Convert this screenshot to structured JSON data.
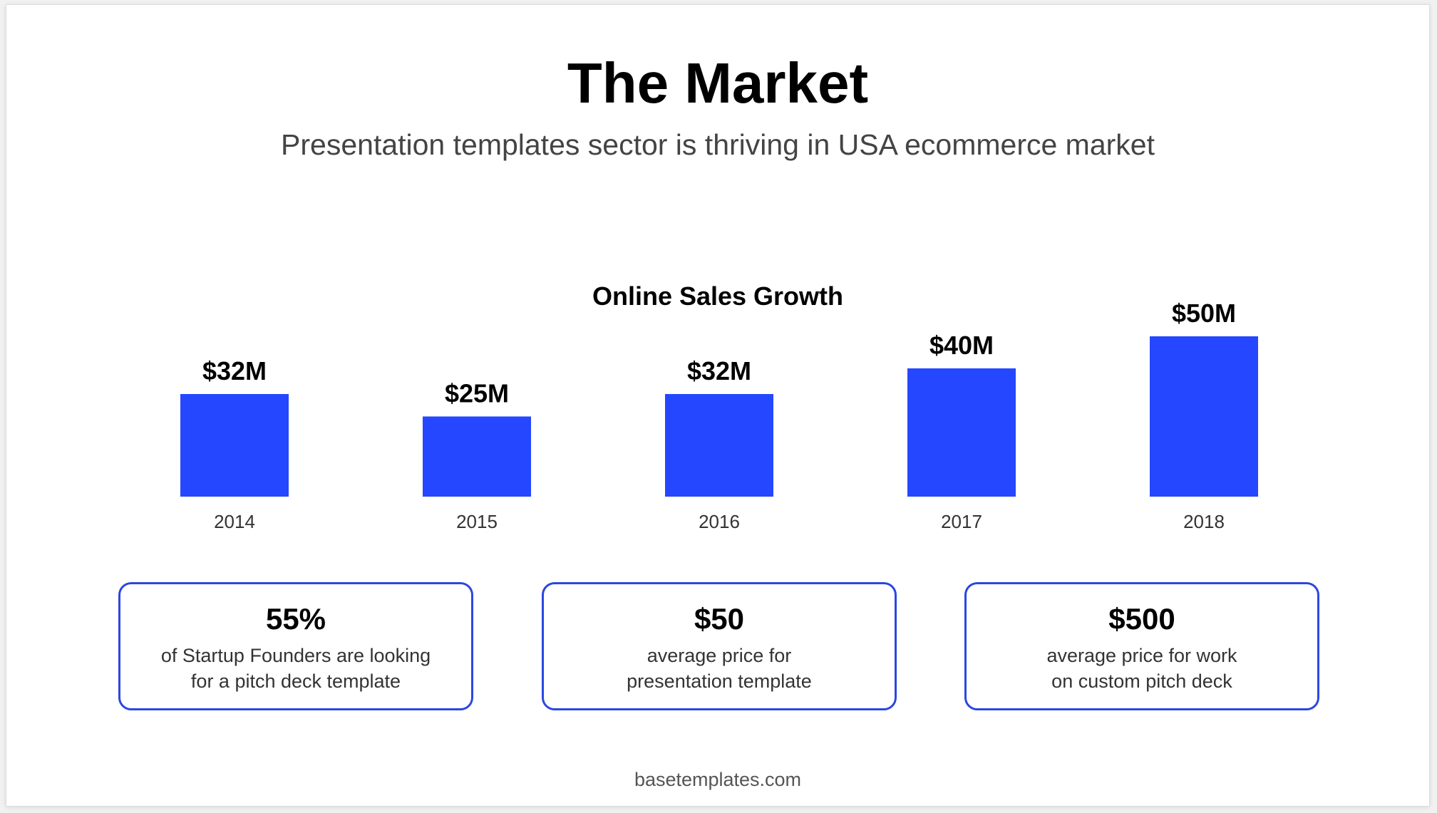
{
  "slide": {
    "title": "The Market",
    "subtitle": "Presentation templates sector is thriving in USA ecommerce market",
    "footer": "basetemplates.com"
  },
  "chart_data": {
    "type": "bar",
    "title": "Online Sales Growth",
    "categories": [
      "2014",
      "2015",
      "2016",
      "2017",
      "2018"
    ],
    "values": [
      32,
      25,
      32,
      40,
      50
    ],
    "value_labels": [
      "$32M",
      "$25M",
      "$32M",
      "$40M",
      "$50M"
    ],
    "unit": "$M",
    "ylim": [
      0,
      50
    ],
    "grid": false,
    "legend": "none",
    "bar_color": "#2547ff"
  },
  "stats": [
    {
      "value": "55%",
      "line1": "of Startup Founders are looking",
      "line2": "for a pitch deck template"
    },
    {
      "value": "$50",
      "line1": "average price for",
      "line2": "presentation template"
    },
    {
      "value": "$500",
      "line1": "average price for work",
      "line2": "on custom pitch deck"
    }
  ],
  "colors": {
    "accent": "#2547ff",
    "box_border": "#2b47e0",
    "text": "#000000",
    "subtext": "#444444"
  }
}
